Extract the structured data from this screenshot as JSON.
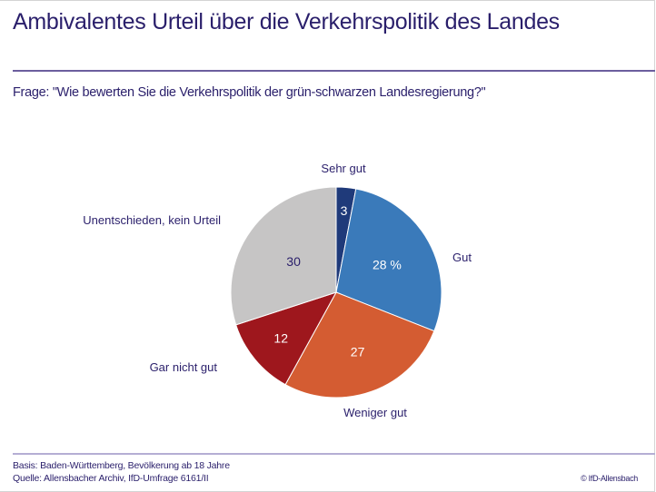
{
  "header": {
    "title": "Ambivalentes Urteil über die Verkehrspolitik des Landes",
    "question": "Frage: \"Wie bewerten Sie die Verkehrspolitik der grün-schwarzen Landesregierung?\""
  },
  "footer": {
    "basis": "Basis: Baden-Württemberg, Bevölkerung ab 18 Jahre",
    "source": "Quelle: Allensbacher Archiv, IfD-Umfrage 6161/II",
    "copyright": "© IfD-Allensbach"
  },
  "chart_data": {
    "type": "pie",
    "title": "Ambivalentes Urteil über die Verkehrspolitik des Landes",
    "unit": "%",
    "start": "12 o'clock, clockwise",
    "slices": [
      {
        "label": "Sehr gut",
        "value": 3,
        "value_label": "3",
        "color": "#1f3a7a",
        "text_color": "#ffffff"
      },
      {
        "label": "Gut",
        "value": 28,
        "value_label": "28 %",
        "color": "#3a7aba",
        "text_color": "#ffffff"
      },
      {
        "label": "Weniger gut",
        "value": 27,
        "value_label": "27",
        "color": "#d45c32",
        "text_color": "#ffffff"
      },
      {
        "label": "Gar nicht gut",
        "value": 12,
        "value_label": "12",
        "color": "#9e171d",
        "text_color": "#ffffff"
      },
      {
        "label": "Unentschieden, kein Urteil",
        "value": 30,
        "value_label": "30",
        "color": "#c6c5c5",
        "text_color": "#2a1f6b"
      }
    ]
  }
}
